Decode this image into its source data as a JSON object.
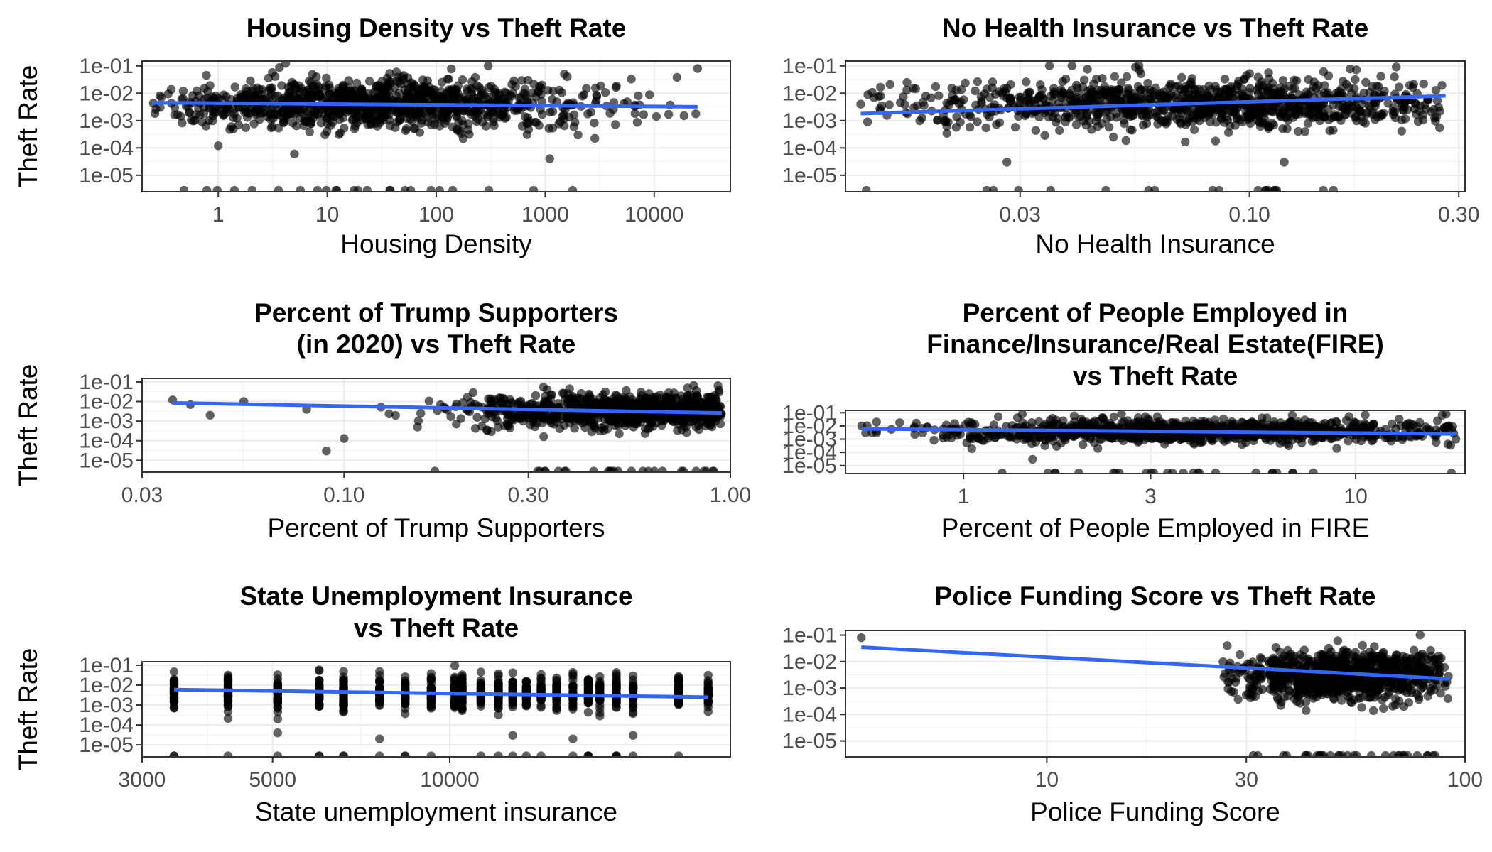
{
  "chart_data": [
    {
      "type": "scatter",
      "title": [
        "Housing Density vs Theft Rate"
      ],
      "xlabel": "Housing Density",
      "ylabel": "Theft Rate",
      "x_scale": "log10",
      "y_scale": "log10",
      "xlim": [
        0.2,
        50000
      ],
      "ylim": [
        2.5e-06,
        0.15
      ],
      "x_ticks": [
        1,
        10,
        100,
        1000,
        10000
      ],
      "x_tick_labels": [
        "1",
        "10",
        "100",
        "1000",
        "10000"
      ],
      "y_ticks": [
        0.1,
        0.01,
        0.001,
        0.0001,
        1e-05
      ],
      "y_tick_labels": [
        "1e-01",
        "1e-02",
        "1e-03",
        "1e-04",
        "1e-05"
      ],
      "fit_line": {
        "x": [
          0.25,
          25000
        ],
        "y": [
          0.0045,
          0.0032
        ]
      },
      "points": {
        "x_range": [
          0.25,
          25000
        ],
        "x_center": 30,
        "x_spread": 1.0,
        "y_center": 0.0042,
        "y_spread": 0.45,
        "n": 1100,
        "seed": 11
      },
      "outliers": [
        [
          0.3,
          0.007
        ],
        [
          25000,
          0.08
        ],
        [
          300,
          0.1
        ],
        [
          1500,
          0.05
        ],
        [
          1,
          0.00012
        ],
        [
          5,
          6e-05
        ],
        [
          2000,
          0.0003
        ],
        [
          1100,
          4e-05
        ]
      ],
      "grid": true,
      "legend": "none"
    },
    {
      "type": "scatter",
      "title": [
        "No Health Insurance vs Theft Rate"
      ],
      "xlabel": "No Health Insurance",
      "ylabel": "",
      "x_scale": "log10",
      "y_scale": "log10",
      "xlim": [
        0.012,
        0.31
      ],
      "ylim": [
        2.5e-06,
        0.15
      ],
      "x_ticks": [
        0.03,
        0.1,
        0.3
      ],
      "x_tick_labels": [
        "0.03",
        "0.10",
        "0.30"
      ],
      "y_ticks": [
        0.1,
        0.01,
        0.001,
        0.0001,
        1e-05
      ],
      "y_tick_labels": [
        "1e-01",
        "1e-02",
        "1e-03",
        "1e-04",
        "1e-05"
      ],
      "fit_line": {
        "x": [
          0.013,
          0.28
        ],
        "y": [
          0.0018,
          0.008
        ]
      },
      "points": {
        "x_range": [
          0.013,
          0.28
        ],
        "x_center": 0.075,
        "x_spread": 0.32,
        "y_center": 0.004,
        "y_spread": 0.45,
        "n": 1100,
        "seed": 23
      },
      "outliers": [
        [
          0.013,
          0.004
        ],
        [
          0.028,
          3e-05
        ],
        [
          0.035,
          0.1
        ],
        [
          0.055,
          0.09
        ],
        [
          0.12,
          3e-05
        ],
        [
          0.27,
          0.003
        ],
        [
          0.24,
          0.0017
        ]
      ],
      "grid": true,
      "legend": "none"
    },
    {
      "type": "scatter",
      "title": [
        "Percent of Trump Supporters",
        "(in 2020) vs Theft Rate"
      ],
      "xlabel": "Percent of Trump Supporters",
      "ylabel": "Theft Rate",
      "x_scale": "log10",
      "y_scale": "log10",
      "xlim": [
        0.03,
        1.0
      ],
      "ylim": [
        2.5e-06,
        0.15
      ],
      "x_ticks": [
        0.03,
        0.1,
        0.3,
        1.0
      ],
      "x_tick_labels": [
        "0.03",
        "0.10",
        "0.30",
        "1.00"
      ],
      "y_ticks": [
        0.1,
        0.01,
        0.001,
        0.0001,
        1e-05
      ],
      "y_tick_labels": [
        "1e-01",
        "1e-02",
        "1e-03",
        "1e-04",
        "1e-05"
      ],
      "fit_line": {
        "x": [
          0.036,
          0.95
        ],
        "y": [
          0.0085,
          0.0026
        ]
      },
      "points": {
        "x_range": [
          0.06,
          0.95
        ],
        "x_center": 0.6,
        "x_spread": 0.22,
        "y_center": 0.0035,
        "y_spread": 0.42,
        "n": 1100,
        "seed": 37
      },
      "outliers": [
        [
          0.036,
          0.012
        ],
        [
          0.04,
          0.007
        ],
        [
          0.045,
          0.002
        ],
        [
          0.055,
          0.01
        ],
        [
          0.09,
          3e-05
        ],
        [
          0.1,
          0.00013
        ],
        [
          0.08,
          0.004
        ]
      ],
      "grid": true,
      "legend": "none"
    },
    {
      "type": "scatter",
      "title": [
        "Percent of People Employed in",
        "Finance/Insurance/Real Estate(FIRE)",
        "vs Theft Rate"
      ],
      "xlabel": "Percent of People Employed in FIRE",
      "ylabel": "",
      "x_scale": "log10",
      "y_scale": "log10",
      "xlim": [
        0.5,
        19
      ],
      "ylim": [
        2.5e-06,
        0.15
      ],
      "x_ticks": [
        1,
        3,
        10
      ],
      "x_tick_labels": [
        "1",
        "3",
        "10"
      ],
      "y_ticks": [
        0.1,
        0.01,
        0.001,
        0.0001,
        1e-05
      ],
      "y_tick_labels": [
        "1e-01",
        "1e-02",
        "1e-03",
        "1e-04",
        "1e-05"
      ],
      "fit_line": {
        "x": [
          0.55,
          18
        ],
        "y": [
          0.006,
          0.0025
        ]
      },
      "points": {
        "x_range": [
          0.55,
          18
        ],
        "x_center": 4,
        "x_spread": 0.35,
        "y_center": 0.004,
        "y_spread": 0.42,
        "n": 1100,
        "seed": 51
      },
      "outliers": [
        [
          0.55,
          0.01
        ],
        [
          0.6,
          0.02
        ],
        [
          0.6,
          0.003
        ],
        [
          17,
          0.08
        ],
        [
          18,
          0.001
        ],
        [
          2.2,
          0.0002
        ],
        [
          1.5,
          3e-05
        ]
      ],
      "grid": true,
      "legend": "none"
    },
    {
      "type": "scatter",
      "title": [
        "State Unemployment Insurance",
        "vs Theft Rate"
      ],
      "xlabel": "State unemployment insurance",
      "ylabel": "Theft Rate",
      "x_scale": "log10",
      "y_scale": "log10",
      "xlim": [
        3000,
        30000
      ],
      "ylim": [
        2.5e-06,
        0.15
      ],
      "x_ticks": [
        3000,
        5000,
        10000
      ],
      "x_tick_labels": [
        "3000",
        "5000",
        "10000"
      ],
      "y_ticks": [
        0.1,
        0.01,
        0.001,
        0.0001,
        1e-05
      ],
      "y_tick_labels": [
        "1e-01",
        "1e-02",
        "1e-03",
        "1e-04",
        "1e-05"
      ],
      "fit_line": {
        "x": [
          3400,
          27500
        ],
        "y": [
          0.006,
          0.0025
        ]
      },
      "discrete_x": [
        3400,
        4200,
        5100,
        6000,
        6600,
        7600,
        8400,
        9300,
        10200,
        10500,
        11300,
        12100,
        12800,
        13500,
        14300,
        15200,
        16200,
        17200,
        18000,
        19200,
        20500,
        24500,
        27500
      ],
      "points": {
        "x_range": [
          3400,
          27500
        ],
        "x_center": 12000,
        "x_spread": 0.2,
        "y_center": 0.004,
        "y_spread": 0.4,
        "n": 900,
        "seed": 67
      },
      "outliers": [
        [
          3400,
          0.0007
        ],
        [
          5100,
          4e-05
        ],
        [
          7600,
          2e-05
        ],
        [
          12800,
          3e-05
        ],
        [
          16200,
          2e-05
        ],
        [
          20500,
          3e-05
        ]
      ],
      "grid": true,
      "legend": "none"
    },
    {
      "type": "scatter",
      "title": [
        "Police Funding Score vs Theft Rate"
      ],
      "xlabel": "Police Funding Score",
      "ylabel": "",
      "x_scale": "log10",
      "y_scale": "log10",
      "xlim": [
        3.3,
        100
      ],
      "ylim": [
        2.5e-06,
        0.15
      ],
      "x_ticks": [
        10,
        30,
        100
      ],
      "x_tick_labels": [
        "10",
        "30",
        "100"
      ],
      "y_ticks": [
        0.1,
        0.01,
        0.001,
        0.0001,
        1e-05
      ],
      "y_tick_labels": [
        "1e-01",
        "1e-02",
        "1e-03",
        "1e-04",
        "1e-05"
      ],
      "fit_line": {
        "x": [
          3.6,
          92
        ],
        "y": [
          0.035,
          0.0022
        ]
      },
      "points": {
        "x_range": [
          26,
          92
        ],
        "x_center": 52,
        "x_spread": 0.13,
        "y_center": 0.003,
        "y_spread": 0.45,
        "n": 1000,
        "seed": 83
      },
      "outliers": [
        [
          3.6,
          0.08
        ],
        [
          27,
          0.04
        ],
        [
          28,
          0.0007
        ],
        [
          31,
          0.0005
        ],
        [
          91,
          0.0004
        ]
      ],
      "grid": true,
      "legend": "none"
    }
  ]
}
